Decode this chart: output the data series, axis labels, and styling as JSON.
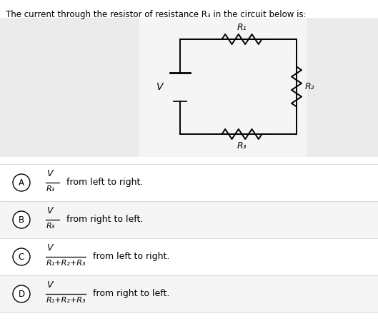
{
  "title": "The current through the resistor of resistance R₃ in the circuit below is:",
  "options": [
    {
      "label": "A",
      "fraction_num": "V",
      "fraction_den": "R₃",
      "direction": "from left to right."
    },
    {
      "label": "B",
      "fraction_num": "V",
      "fraction_den": "R₃",
      "direction": "from right to left."
    },
    {
      "label": "C",
      "fraction_num": "V",
      "fraction_den": "R₁+R₂+R₃",
      "direction": "from left to right."
    },
    {
      "label": "D",
      "fraction_num": "V",
      "fraction_den": "R₁+R₂+R₃",
      "direction": "from right to left."
    }
  ],
  "R1_label": "R₁",
  "R2_label": "R₂",
  "R3_label": "R₃",
  "panel_left_bg": "#ebebeb",
  "panel_right_bg": "#ebebeb",
  "circuit_area_bg": "#f5f5f5",
  "answer_bg_even": "#ffffff",
  "answer_bg_odd": "#f5f5f5"
}
